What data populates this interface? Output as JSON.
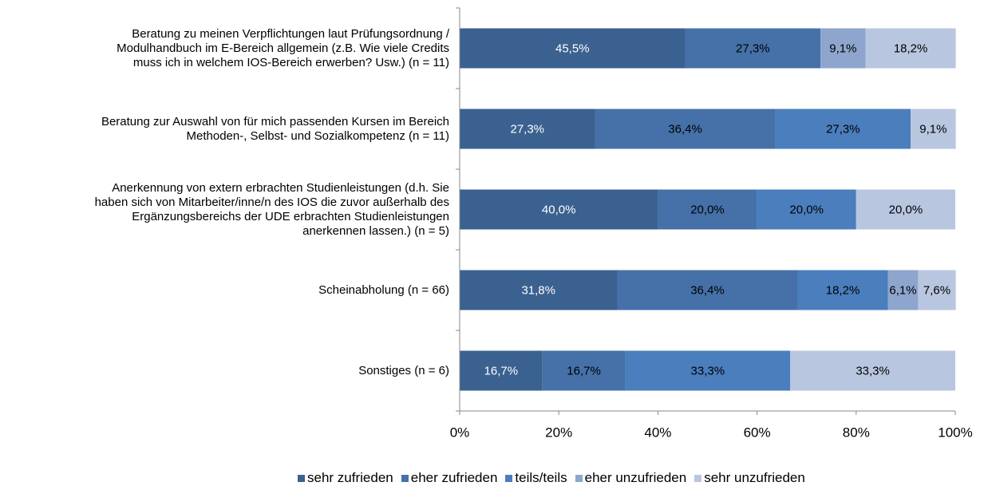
{
  "chart_data": {
    "type": "stacked_barh",
    "categories": [
      "Beratung zu meinen Verpflichtungen laut Prüfungsordnung /\nModulhandbuch im E-Bereich allgemein (z.B. Wie viele Credits\nmuss ich in welchem IOS-Bereich erwerben? Usw.) (n = 11)",
      "Beratung zur Auswahl von für mich passenden Kursen im Bereich\nMethoden-, Selbst- und Sozialkompetenz (n = 11)",
      "Anerkennung von extern erbrachten Studienleistungen (d.h. Sie\nhaben sich von Mitarbeiter/inne/n des IOS die zuvor außerhalb des\nErgänzungsbereichs der UDE erbrachten Studienleistungen\nanerkennen lassen.) (n = 5)",
      "Scheinabholung (n = 66)",
      "Sonstiges (n = 6)"
    ],
    "series": [
      {
        "name": "sehr zufrieden",
        "color": "#3a6190",
        "values": [
          45.5,
          27.3,
          40.0,
          31.8,
          16.7
        ],
        "value_labels": [
          "45,5%",
          "27,3%",
          "40,0%",
          "31,8%",
          "16,7%"
        ]
      },
      {
        "name": "eher zufrieden",
        "color": "#4571a8",
        "values": [
          27.3,
          36.4,
          20.0,
          36.4,
          16.7
        ],
        "value_labels": [
          "27,3%",
          "36,4%",
          "20,0%",
          "36,4%",
          "16,7%"
        ]
      },
      {
        "name": "teils/teils",
        "color": "#4a7ebd",
        "values": [
          null,
          27.3,
          20.0,
          18.2,
          33.3
        ],
        "value_labels": [
          null,
          "27,3%",
          "20,0%",
          "18,2%",
          "33,3%"
        ]
      },
      {
        "name": "eher unzufrieden",
        "color": "#8ea5cd",
        "values": [
          9.1,
          null,
          null,
          6.1,
          null
        ],
        "value_labels": [
          "9,1%",
          null,
          null,
          "6,1%",
          null
        ]
      },
      {
        "name": "sehr unzufrieden",
        "color": "#b9c6e0",
        "values": [
          18.2,
          9.1,
          20.0,
          7.6,
          33.3
        ],
        "value_labels": [
          "18,2%",
          "9,1%",
          "20,0%",
          "7,6%",
          "33,3%"
        ]
      }
    ],
    "xlim": [
      0,
      100
    ],
    "xticks": [
      {
        "value": 0,
        "label": "0%"
      },
      {
        "value": 20,
        "label": "20%"
      },
      {
        "value": 40,
        "label": "40%"
      },
      {
        "value": 60,
        "label": "60%"
      },
      {
        "value": 80,
        "label": "80%"
      },
      {
        "value": 100,
        "label": "100%"
      }
    ],
    "legend": "bottom"
  }
}
